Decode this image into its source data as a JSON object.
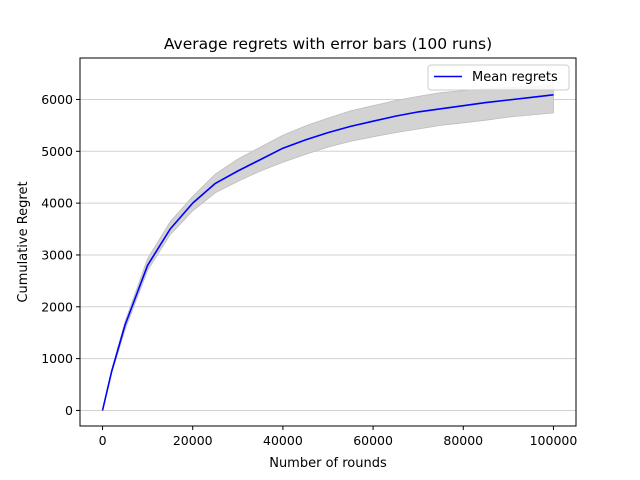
{
  "chart_data": {
    "type": "line",
    "title": "Average regrets with error bars (100 runs)",
    "xlabel": "Number of rounds",
    "ylabel": "Cumulative Regret",
    "xlim": [
      -5000,
      105000
    ],
    "ylim": [
      -300,
      6800
    ],
    "xticks": [
      0,
      20000,
      40000,
      60000,
      80000,
      100000
    ],
    "xtick_labels": [
      "0",
      "20000",
      "40000",
      "60000",
      "80000",
      "100000"
    ],
    "yticks": [
      0,
      1000,
      2000,
      3000,
      4000,
      5000,
      6000
    ],
    "ytick_labels": [
      "0",
      "1000",
      "2000",
      "3000",
      "4000",
      "5000",
      "6000"
    ],
    "grid": "y",
    "legend_position": "top-right",
    "colors": {
      "line": "#0000ff",
      "band": "#d3d3d3",
      "band_edge": "#bdbdbd",
      "grid": "#d0d0d0"
    },
    "x": [
      0,
      2000,
      5000,
      10000,
      15000,
      20000,
      25000,
      30000,
      35000,
      40000,
      45000,
      50000,
      55000,
      60000,
      65000,
      70000,
      75000,
      80000,
      85000,
      90000,
      95000,
      100000
    ],
    "series": [
      {
        "name": "Mean regrets",
        "values": [
          0,
          750,
          1650,
          2800,
          3500,
          4000,
          4380,
          4620,
          4840,
          5060,
          5220,
          5360,
          5480,
          5580,
          5680,
          5760,
          5820,
          5880,
          5940,
          5990,
          6040,
          6090
        ],
        "lower": [
          0,
          720,
          1560,
          2700,
          3390,
          3850,
          4200,
          4420,
          4620,
          4790,
          4940,
          5080,
          5190,
          5280,
          5360,
          5430,
          5500,
          5550,
          5600,
          5660,
          5700,
          5740
        ],
        "upper": [
          0,
          780,
          1720,
          2930,
          3640,
          4130,
          4560,
          4850,
          5080,
          5310,
          5490,
          5640,
          5780,
          5880,
          5980,
          6060,
          6130,
          6170,
          6210,
          6230,
          6250,
          6270
        ]
      }
    ]
  }
}
